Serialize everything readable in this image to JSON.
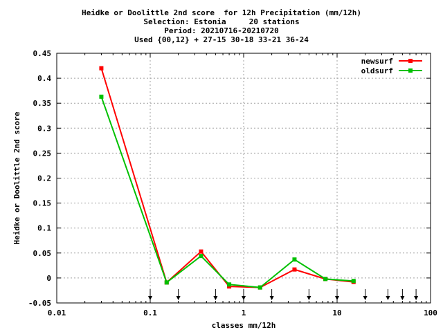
{
  "chart_data": {
    "type": "line",
    "title_lines": [
      "Heidke or Doolittle 2nd score  for 12h Precipitation (mm/12h)",
      "Selection: Estonia     20 stations",
      "Period: 20210716-20210720",
      "Used {00,12} + 27-15 30-18 33-21 36-24"
    ],
    "xlabel": "classes mm/12h",
    "ylabel": "Heidke or Doolittle 2nd score",
    "xscale": "log",
    "xlim": [
      0.01,
      100
    ],
    "ylim": [
      -0.05,
      0.45
    ],
    "grid": true,
    "legend_position": "top-right",
    "x_ticks": [
      "0.01",
      "0.1",
      "1",
      "10",
      "100"
    ],
    "y_ticks": [
      "-0.05",
      "0",
      "0.05",
      "0.1",
      "0.15",
      "0.2",
      "0.25",
      "0.3",
      "0.35",
      "0.4",
      "0.45"
    ],
    "y_tick_values": [
      -0.05,
      0,
      0.05,
      0.1,
      0.15,
      0.2,
      0.25,
      0.3,
      0.35,
      0.4,
      0.45
    ],
    "x_tick_values": [
      0.01,
      0.1,
      1,
      10,
      100
    ],
    "class_limits": [
      0.1,
      0.2,
      0.5,
      1,
      2,
      5,
      10,
      20,
      35,
      50,
      70
    ],
    "x": [
      0.03,
      0.15,
      0.35,
      0.7,
      1.5,
      3.5,
      7.5,
      15
    ],
    "series": [
      {
        "name": "newsurf",
        "color": "#ff0000",
        "values": [
          0.42,
          -0.009,
          0.053,
          -0.017,
          -0.019,
          0.017,
          -0.002,
          -0.008
        ]
      },
      {
        "name": "oldsurf",
        "color": "#00c000",
        "values": [
          0.363,
          -0.009,
          0.044,
          -0.013,
          -0.019,
          0.037,
          -0.002,
          -0.006
        ]
      }
    ]
  }
}
